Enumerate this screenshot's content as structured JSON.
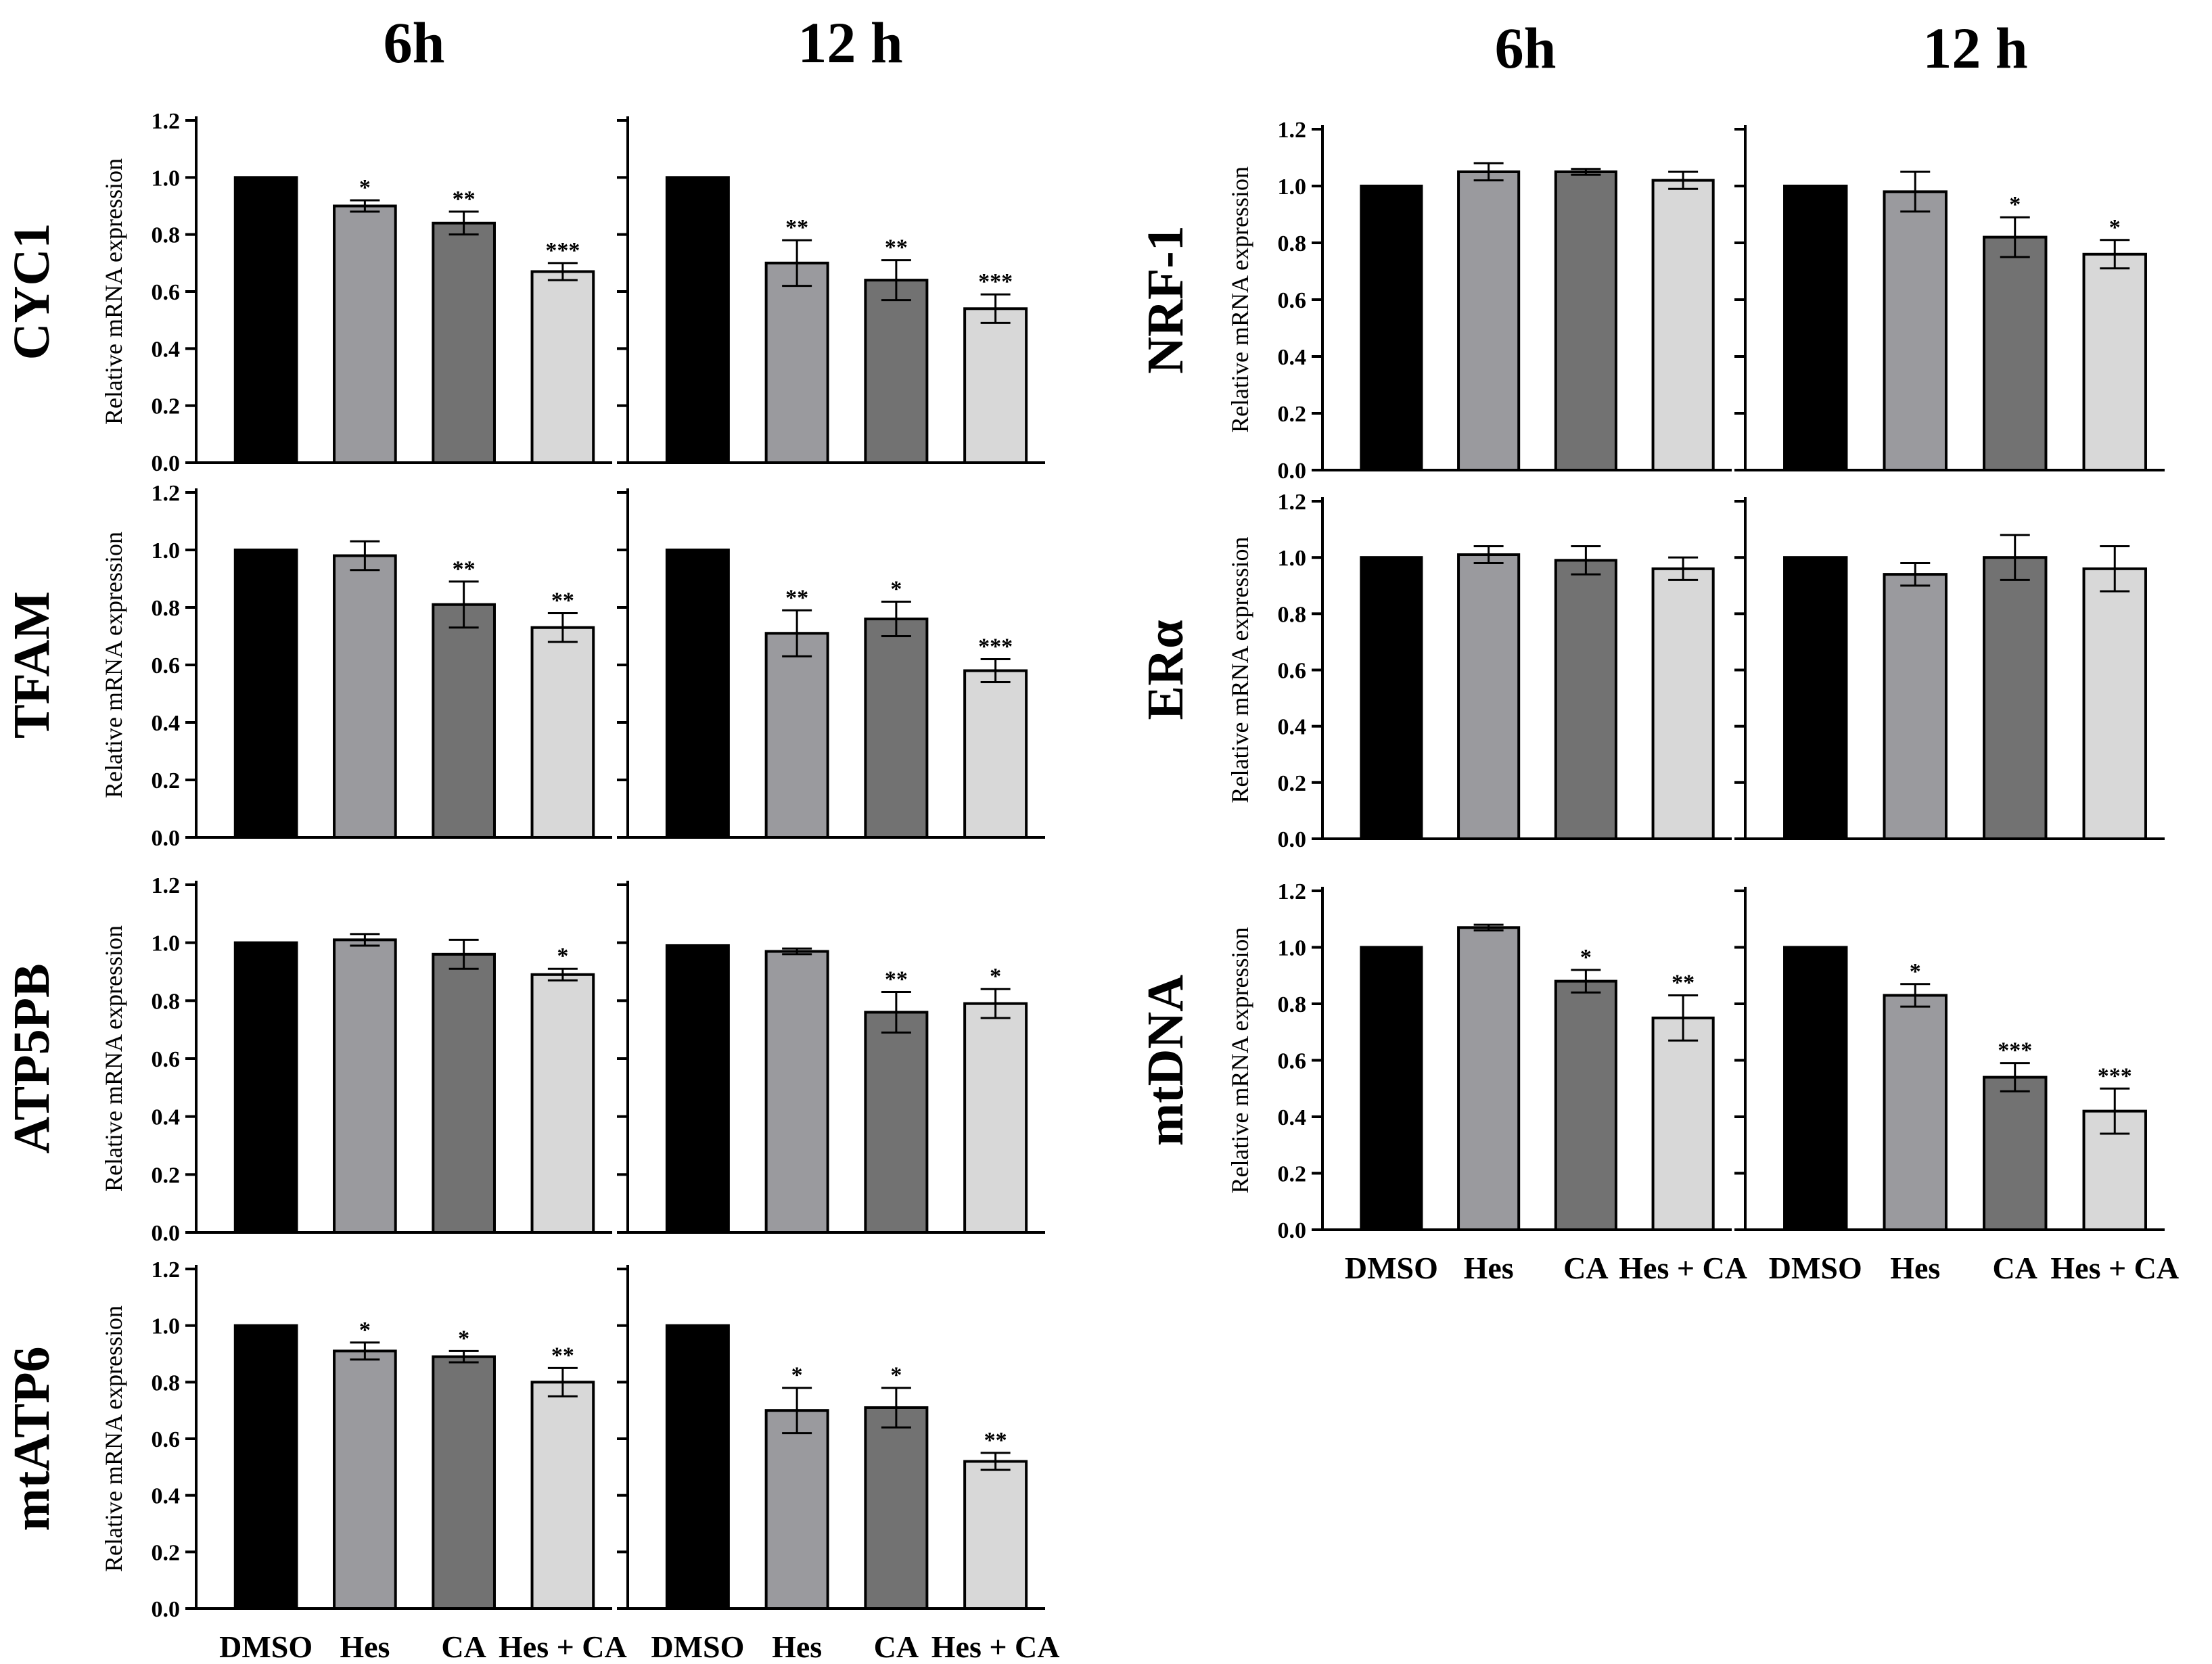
{
  "figure": {
    "time_headers": [
      "6h",
      "12 h"
    ],
    "ylabel": "Relative mRNA expression",
    "y_ticks": [
      "0.0",
      "0.2",
      "0.4",
      "0.6",
      "0.8",
      "1.0",
      "1.2"
    ],
    "categories": [
      "DMSO",
      "Hes",
      "CA",
      "Hes + CA"
    ],
    "bar_colors": [
      "#000000",
      "#9a9a9e",
      "#727272",
      "#d8d8d8"
    ]
  },
  "chart_data": [
    {
      "type": "bar",
      "gene": "CYC1",
      "time": "6h",
      "categories": [
        "DMSO",
        "Hes",
        "CA",
        "Hes + CA"
      ],
      "values": [
        1.0,
        0.9,
        0.84,
        0.67
      ],
      "errors": [
        0,
        0.02,
        0.04,
        0.03
      ],
      "significance": [
        "",
        "*",
        "**",
        "***"
      ],
      "ylabel": "Relative mRNA expression",
      "ylim": [
        0,
        1.2
      ]
    },
    {
      "type": "bar",
      "gene": "CYC1",
      "time": "12 h",
      "categories": [
        "DMSO",
        "Hes",
        "CA",
        "Hes + CA"
      ],
      "values": [
        1.0,
        0.7,
        0.64,
        0.54
      ],
      "errors": [
        0,
        0.08,
        0.07,
        0.05
      ],
      "significance": [
        "",
        "**",
        "**",
        "***"
      ],
      "ylabel": "",
      "ylim": [
        0,
        1.2
      ]
    },
    {
      "type": "bar",
      "gene": "TFAM",
      "time": "6h",
      "categories": [
        "DMSO",
        "Hes",
        "CA",
        "Hes + CA"
      ],
      "values": [
        1.0,
        0.98,
        0.81,
        0.73
      ],
      "errors": [
        0,
        0.05,
        0.08,
        0.05
      ],
      "significance": [
        "",
        "",
        "**",
        "**"
      ],
      "ylabel": "Relative mRNA expression",
      "ylim": [
        0,
        1.2
      ]
    },
    {
      "type": "bar",
      "gene": "TFAM",
      "time": "12 h",
      "categories": [
        "DMSO",
        "Hes",
        "CA",
        "Hes + CA"
      ],
      "values": [
        1.0,
        0.71,
        0.76,
        0.58
      ],
      "errors": [
        0,
        0.08,
        0.06,
        0.04
      ],
      "significance": [
        "",
        "**",
        "*",
        "***"
      ],
      "ylabel": "",
      "ylim": [
        0,
        1.2
      ]
    },
    {
      "type": "bar",
      "gene": "ATP5PB",
      "time": "6h",
      "categories": [
        "DMSO",
        "Hes",
        "CA",
        "Hes + CA"
      ],
      "values": [
        1.0,
        1.01,
        0.96,
        0.89
      ],
      "errors": [
        0,
        0.02,
        0.05,
        0.02
      ],
      "significance": [
        "",
        "",
        "",
        "*"
      ],
      "ylabel": "Relative mRNA expression",
      "ylim": [
        0,
        1.2
      ]
    },
    {
      "type": "bar",
      "gene": "ATP5PB",
      "time": "12 h",
      "categories": [
        "DMSO",
        "Hes",
        "CA",
        "Hes + CA"
      ],
      "values": [
        0.99,
        0.97,
        0.76,
        0.79
      ],
      "errors": [
        0,
        0.01,
        0.07,
        0.05
      ],
      "significance": [
        "",
        "",
        "**",
        "*"
      ],
      "ylabel": "",
      "ylim": [
        0,
        1.2
      ]
    },
    {
      "type": "bar",
      "gene": "mtATP6",
      "time": "6h",
      "categories": [
        "DMSO",
        "Hes",
        "CA",
        "Hes + CA"
      ],
      "values": [
        1.0,
        0.91,
        0.89,
        0.8
      ],
      "errors": [
        0,
        0.03,
        0.02,
        0.05
      ],
      "significance": [
        "",
        "*",
        "*",
        "**"
      ],
      "ylabel": "Relative mRNA expression",
      "ylim": [
        0,
        1.2
      ]
    },
    {
      "type": "bar",
      "gene": "mtATP6",
      "time": "12 h",
      "categories": [
        "DMSO",
        "Hes",
        "CA",
        "Hes + CA"
      ],
      "values": [
        1.0,
        0.7,
        0.71,
        0.52
      ],
      "errors": [
        0,
        0.08,
        0.07,
        0.03
      ],
      "significance": [
        "",
        "*",
        "*",
        "**"
      ],
      "ylabel": "",
      "ylim": [
        0,
        1.2
      ]
    },
    {
      "type": "bar",
      "gene": "NRF-1",
      "time": "6h",
      "categories": [
        "DMSO",
        "Hes",
        "CA",
        "Hes + CA"
      ],
      "values": [
        1.0,
        1.05,
        1.05,
        1.02
      ],
      "errors": [
        0,
        0.03,
        0.01,
        0.03
      ],
      "significance": [
        "",
        "",
        "",
        ""
      ],
      "ylabel": "Relative mRNA expression",
      "ylim": [
        0,
        1.2
      ]
    },
    {
      "type": "bar",
      "gene": "NRF-1",
      "time": "12 h",
      "categories": [
        "DMSO",
        "Hes",
        "CA",
        "Hes + CA"
      ],
      "values": [
        1.0,
        0.98,
        0.82,
        0.76
      ],
      "errors": [
        0,
        0.07,
        0.07,
        0.05
      ],
      "significance": [
        "",
        "",
        "*",
        "*"
      ],
      "ylabel": "",
      "ylim": [
        0,
        1.2
      ]
    },
    {
      "type": "bar",
      "gene": "ERα",
      "time": "6h",
      "categories": [
        "DMSO",
        "Hes",
        "CA",
        "Hes + CA"
      ],
      "values": [
        1.0,
        1.01,
        0.99,
        0.96
      ],
      "errors": [
        0,
        0.03,
        0.05,
        0.04
      ],
      "significance": [
        "",
        "",
        "",
        ""
      ],
      "ylabel": "Relative mRNA expression",
      "ylim": [
        0,
        1.2
      ]
    },
    {
      "type": "bar",
      "gene": "ERα",
      "time": "12 h",
      "categories": [
        "DMSO",
        "Hes",
        "CA",
        "Hes + CA"
      ],
      "values": [
        1.0,
        0.94,
        1.0,
        0.96
      ],
      "errors": [
        0,
        0.04,
        0.08,
        0.08
      ],
      "significance": [
        "",
        "",
        "",
        ""
      ],
      "ylabel": "",
      "ylim": [
        0,
        1.2
      ]
    },
    {
      "type": "bar",
      "gene": "mtDNA",
      "time": "6h",
      "categories": [
        "DMSO",
        "Hes",
        "CA",
        "Hes + CA"
      ],
      "values": [
        1.0,
        1.07,
        0.88,
        0.75
      ],
      "errors": [
        0,
        0.01,
        0.04,
        0.08
      ],
      "significance": [
        "",
        "",
        "*",
        "**"
      ],
      "ylabel": "Relative mRNA expression",
      "ylim": [
        0,
        1.2
      ]
    },
    {
      "type": "bar",
      "gene": "mtDNA",
      "time": "12 h",
      "categories": [
        "DMSO",
        "Hes",
        "CA",
        "Hes + CA"
      ],
      "values": [
        1.0,
        0.83,
        0.54,
        0.42
      ],
      "errors": [
        0,
        0.04,
        0.05,
        0.08
      ],
      "significance": [
        "",
        "*",
        "***",
        "***"
      ],
      "ylabel": "",
      "ylim": [
        0,
        1.2
      ]
    }
  ]
}
